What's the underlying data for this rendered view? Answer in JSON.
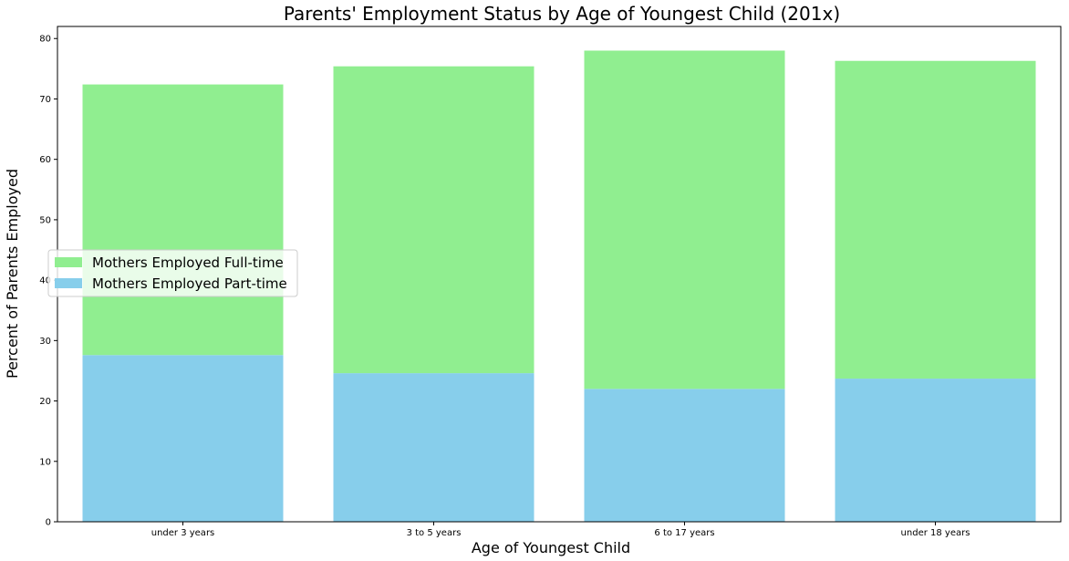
{
  "chart_data": {
    "type": "bar",
    "stacked": true,
    "title": "Parents' Employment Status by Age of Youngest Child (201x)",
    "xlabel": "Age of Youngest Child",
    "ylabel": "Percent of Parents Employed",
    "categories": [
      "under 3 years",
      "3 to 5 years",
      "6 to 17 years",
      "under 18 years"
    ],
    "series": [
      {
        "name": "Mothers Employed Part-time",
        "values": [
          27.6,
          24.6,
          22.0,
          23.7
        ],
        "color": "#87ceeb"
      },
      {
        "name": "Mothers Employed Full-time",
        "values": [
          44.8,
          50.8,
          56.0,
          52.6
        ],
        "color": "#90ee90"
      }
    ],
    "ylim": [
      0,
      82
    ],
    "yticks": [
      0,
      10,
      20,
      30,
      40,
      50,
      60,
      70,
      80
    ],
    "grid": false,
    "legend": {
      "placement": "center-left",
      "entries": [
        {
          "label": "Mothers Employed Full-time",
          "color": "#90ee90"
        },
        {
          "label": "Mothers Employed Part-time",
          "color": "#87ceeb"
        }
      ]
    }
  }
}
